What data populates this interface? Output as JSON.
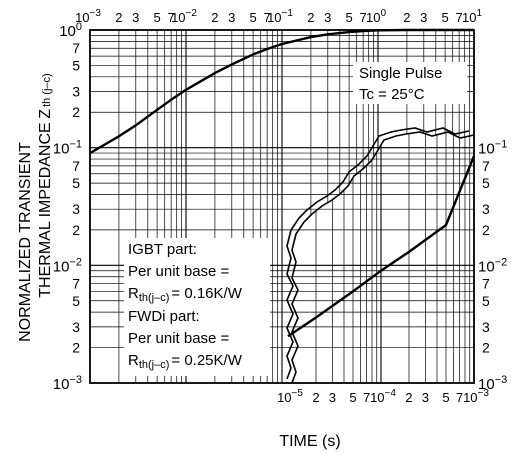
{
  "chart_data": {
    "type": "line",
    "xlabel": "TIME (s)",
    "ylabel_line1": "NORMALIZED TRANSIENT",
    "ylabel_line2": "THERMAL IMPEDANCE",
    "ylabel_symbol": "Z",
    "ylabel_subscript": "th (j–c)",
    "x_scale": "log",
    "y_scale": "log",
    "grid": true,
    "xlim_upper": [
      0.001,
      10
    ],
    "xlim_lower": [
      1e-05,
      0.001
    ],
    "ylim": [
      0.001,
      1
    ],
    "upper_x_decade_labels": [
      {
        "mant": "10",
        "exp": "−3"
      },
      {
        "mant": "10",
        "exp": "−2"
      },
      {
        "mant": "10",
        "exp": "−1"
      },
      {
        "mant": "10",
        "exp": "0"
      },
      {
        "mant": "10",
        "exp": "1"
      }
    ],
    "lower_x_decade_labels": [
      {
        "mant": "10",
        "exp": "−5"
      },
      {
        "mant": "10",
        "exp": "−4"
      },
      {
        "mant": "10",
        "exp": "−3"
      }
    ],
    "minor_tick_labels": [
      "2",
      "3",
      "5",
      "7"
    ],
    "y_decade_labels": [
      {
        "mant": "10",
        "exp": "0"
      },
      {
        "mant": "10",
        "exp": "−1"
      },
      {
        "mant": "10",
        "exp": "−2"
      },
      {
        "mant": "10",
        "exp": "−3"
      }
    ],
    "series": [
      {
        "axis": "upper",
        "x": [
          0.001,
          0.002,
          0.003,
          0.005,
          0.007,
          0.01,
          0.02,
          0.03,
          0.05,
          0.07,
          0.1,
          0.2,
          0.3,
          0.5,
          0.7,
          1,
          2,
          3,
          5,
          7,
          10
        ],
        "y": [
          0.09,
          0.125,
          0.155,
          0.21,
          0.255,
          0.31,
          0.43,
          0.51,
          0.62,
          0.69,
          0.76,
          0.87,
          0.92,
          0.96,
          0.98,
          0.995,
          1.0,
          1.0,
          1.0,
          1.0,
          1.0
        ]
      },
      {
        "axis": "lower",
        "x": [
          1e-05,
          2e-05,
          5e-05,
          0.0001,
          0.0002,
          0.0005,
          0.001
        ],
        "y": [
          0.0025,
          0.0036,
          0.006,
          0.009,
          0.013,
          0.022,
          0.085
        ]
      }
    ],
    "annotations": {
      "pulse": "Single Pulse",
      "tc": "Tc = 25°C",
      "igbt_title": "IGBT part:",
      "igbt_base": "Per unit base =",
      "igbt_r_prefix": "R",
      "igbt_r_sub": "th(j–c)",
      "igbt_r_value": "= 0.16K/W",
      "fwd_title": "FWDi part:",
      "fwd_base": "Per unit base =",
      "fwd_r_prefix": "R",
      "fwd_r_sub": "th(j–c)",
      "fwd_r_value": "= 0.25K/W"
    }
  }
}
